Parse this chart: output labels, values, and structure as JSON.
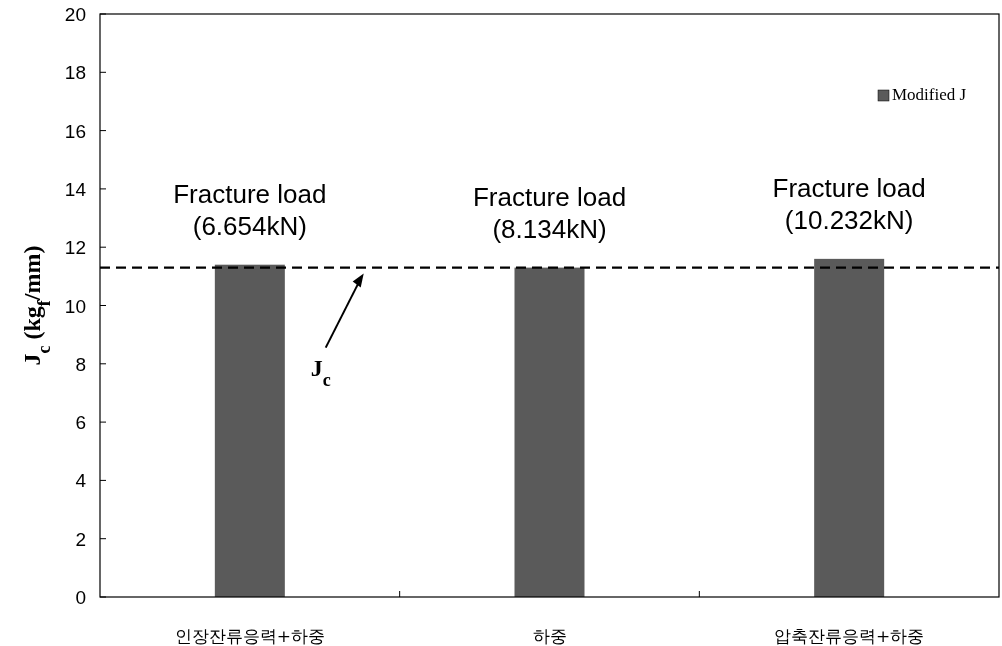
{
  "chart_data": {
    "type": "bar",
    "ylabel": "J$_{c}$ (kg$_{f}$/mm)",
    "categories": [
      "인장잔류응력+하중",
      "하중",
      "압축잔류응력+하중"
    ],
    "series": [
      {
        "name": "Modified J",
        "color": "#5a5a5a",
        "values": [
          11.4,
          11.3,
          11.6
        ]
      }
    ],
    "ylim": [
      0,
      20
    ],
    "yticks": [
      0,
      2,
      4,
      6,
      8,
      10,
      12,
      14,
      16,
      18,
      20
    ],
    "grid": false,
    "legend": "top right",
    "ref_lines": [
      {
        "axis": "y",
        "value": 11.3,
        "label": "J$_{c}$",
        "line_style": "dashed",
        "color": "#000000"
      }
    ],
    "annotations": [
      "Fracture load (6.654kN)",
      "Fracture load (8.134kN)",
      "Fracture load (10.232kN)"
    ]
  }
}
